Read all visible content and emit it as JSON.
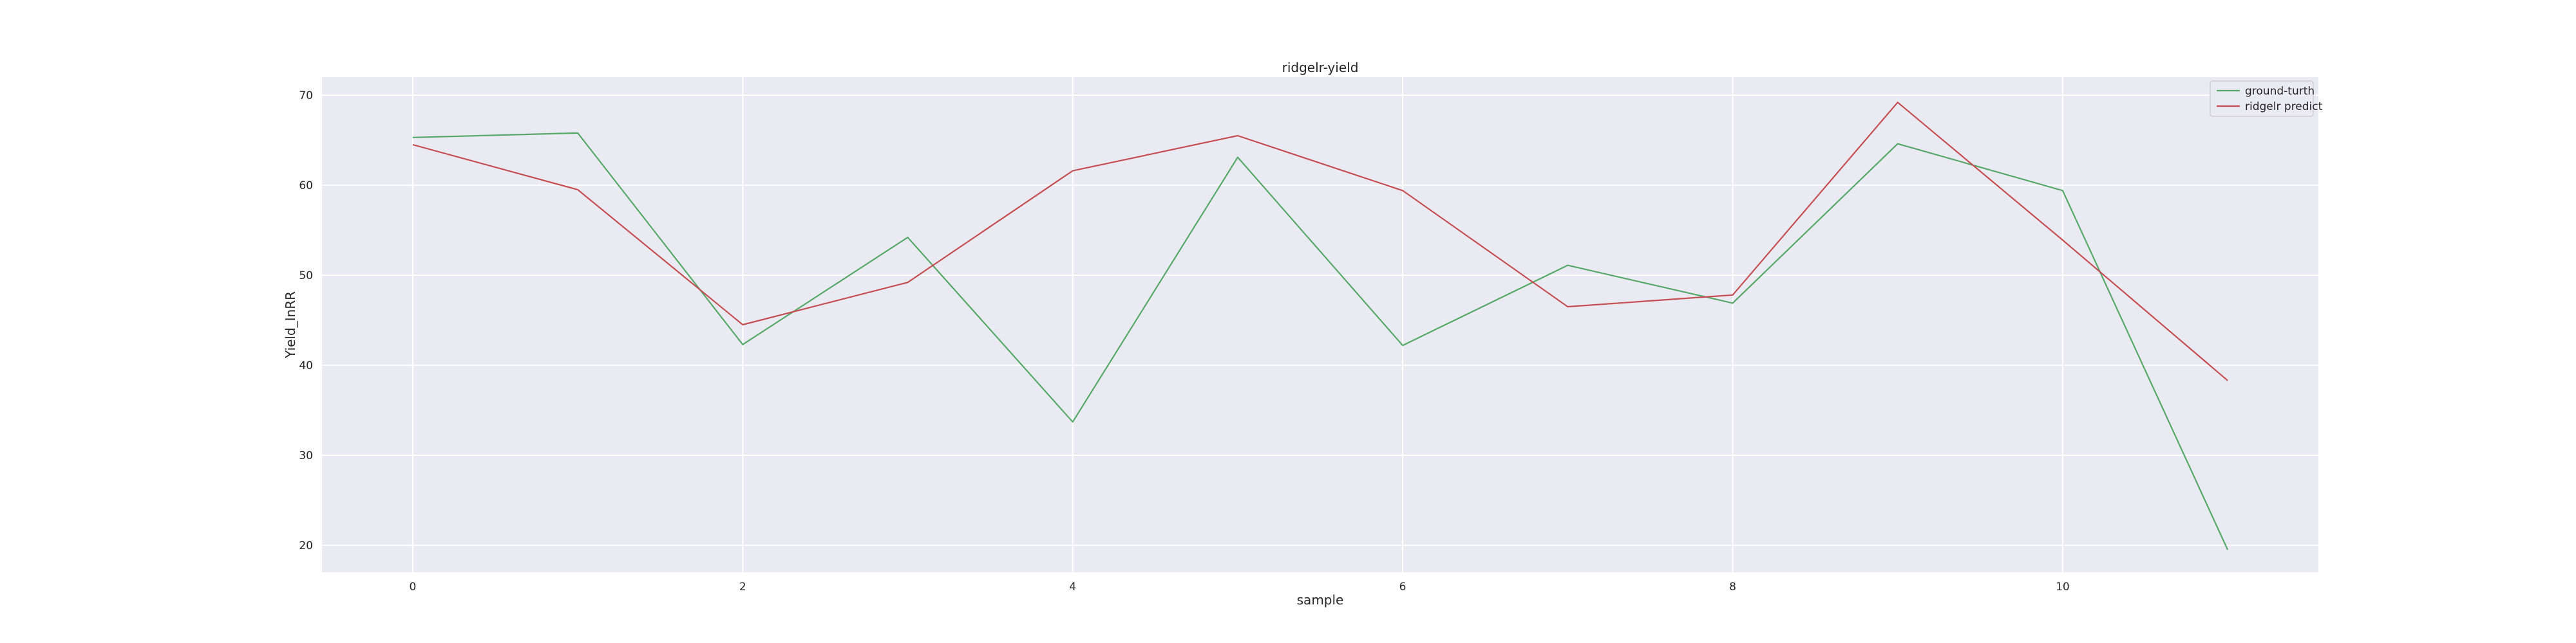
{
  "chart_data": {
    "type": "line",
    "title": "ridgelr-yield",
    "xlabel": "sample",
    "ylabel": "Yield_InRR",
    "x": [
      0,
      1,
      2,
      3,
      4,
      5,
      6,
      7,
      8,
      9,
      10,
      11
    ],
    "xlim": [
      -0.55,
      11.55
    ],
    "ylim": [
      17,
      72
    ],
    "xticks": [
      0,
      2,
      4,
      6,
      8,
      10
    ],
    "yticks": [
      20,
      30,
      40,
      50,
      60,
      70
    ],
    "grid": true,
    "legend_position": "top-right",
    "series": [
      {
        "name": "ground-turth",
        "color": "#55a868",
        "values": [
          65.3,
          65.8,
          42.3,
          54.2,
          33.7,
          63.1,
          42.2,
          51.1,
          46.9,
          64.6,
          59.4,
          19.5
        ]
      },
      {
        "name": "ridgelr predict",
        "color": "#c44e52",
        "values": [
          64.5,
          59.5,
          44.5,
          49.2,
          61.6,
          65.5,
          59.4,
          46.5,
          47.8,
          69.2,
          53.9,
          38.3
        ]
      }
    ]
  }
}
